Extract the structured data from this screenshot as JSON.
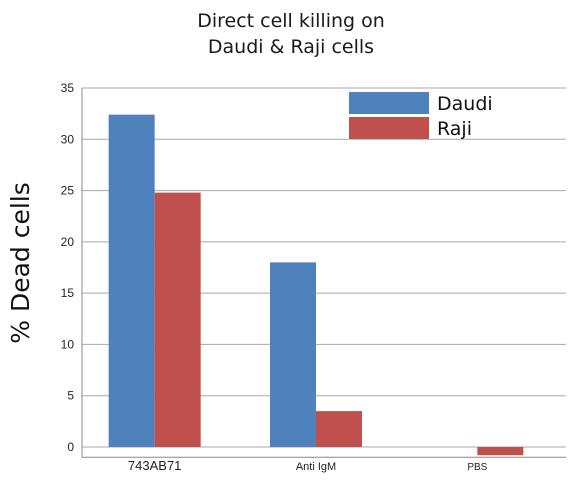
{
  "chart_data": {
    "type": "bar",
    "title": [
      "Direct cell killing on",
      "Daudi & Raji cells"
    ],
    "ylabel": "% Dead cells",
    "xlabel": "",
    "categories": [
      "743AB71",
      "Anti IgM",
      "PBS"
    ],
    "series": [
      {
        "name": "Daudi",
        "color": "#4f81bd",
        "values": [
          32.4,
          18.0,
          0.0
        ]
      },
      {
        "name": "Raji",
        "color": "#c0504d",
        "values": [
          24.8,
          3.5,
          -0.8
        ]
      }
    ],
    "ylim": [
      -1,
      35
    ],
    "yticks": [
      0,
      5,
      10,
      15,
      20,
      25,
      30,
      35
    ],
    "grid": true,
    "legend_position": "top-right"
  }
}
